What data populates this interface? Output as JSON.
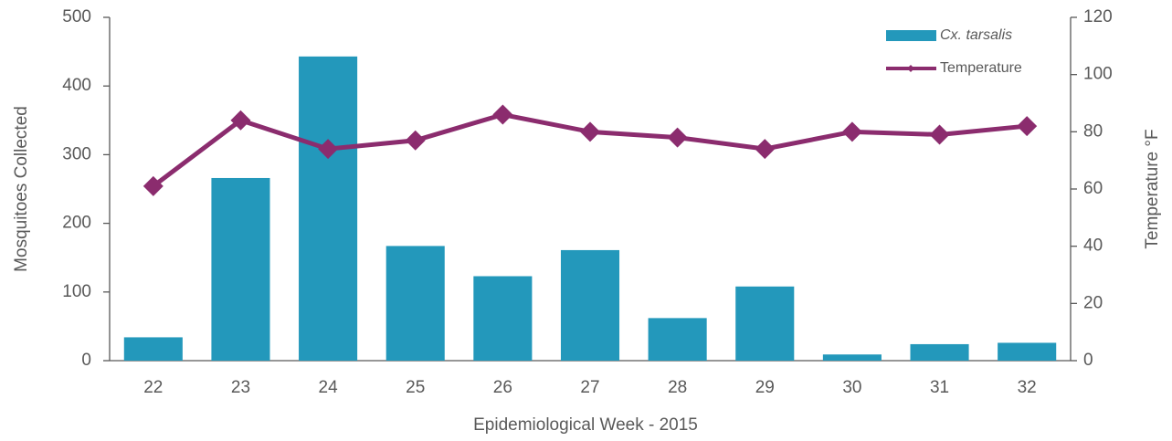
{
  "chart_data": {
    "type": "bar",
    "x_label": "Epidemiological Week - 2015",
    "y_label": "Mosquitoes Collected",
    "y2_label": "Temperature °F",
    "categories": [
      "22",
      "23",
      "24",
      "25",
      "26",
      "27",
      "28",
      "29",
      "30",
      "31",
      "32"
    ],
    "series": [
      {
        "name": "Cx. tarsalis",
        "type": "bar",
        "color": "#2398bb",
        "values": [
          34,
          266,
          443,
          167,
          123,
          161,
          62,
          108,
          9,
          24,
          26
        ]
      },
      {
        "name": "Temperature",
        "type": "line",
        "axis": "y2",
        "color": "#8b2c6e",
        "values": [
          61,
          84,
          74,
          77,
          86,
          80,
          78,
          74,
          80,
          79,
          82
        ]
      }
    ],
    "ylim": [
      0,
      500
    ],
    "yticks": [
      0,
      100,
      200,
      300,
      400,
      500
    ],
    "y2lim": [
      0,
      120
    ],
    "y2ticks": [
      0,
      20,
      40,
      60,
      80,
      100,
      120
    ],
    "grid": false,
    "legend": "top-right"
  }
}
